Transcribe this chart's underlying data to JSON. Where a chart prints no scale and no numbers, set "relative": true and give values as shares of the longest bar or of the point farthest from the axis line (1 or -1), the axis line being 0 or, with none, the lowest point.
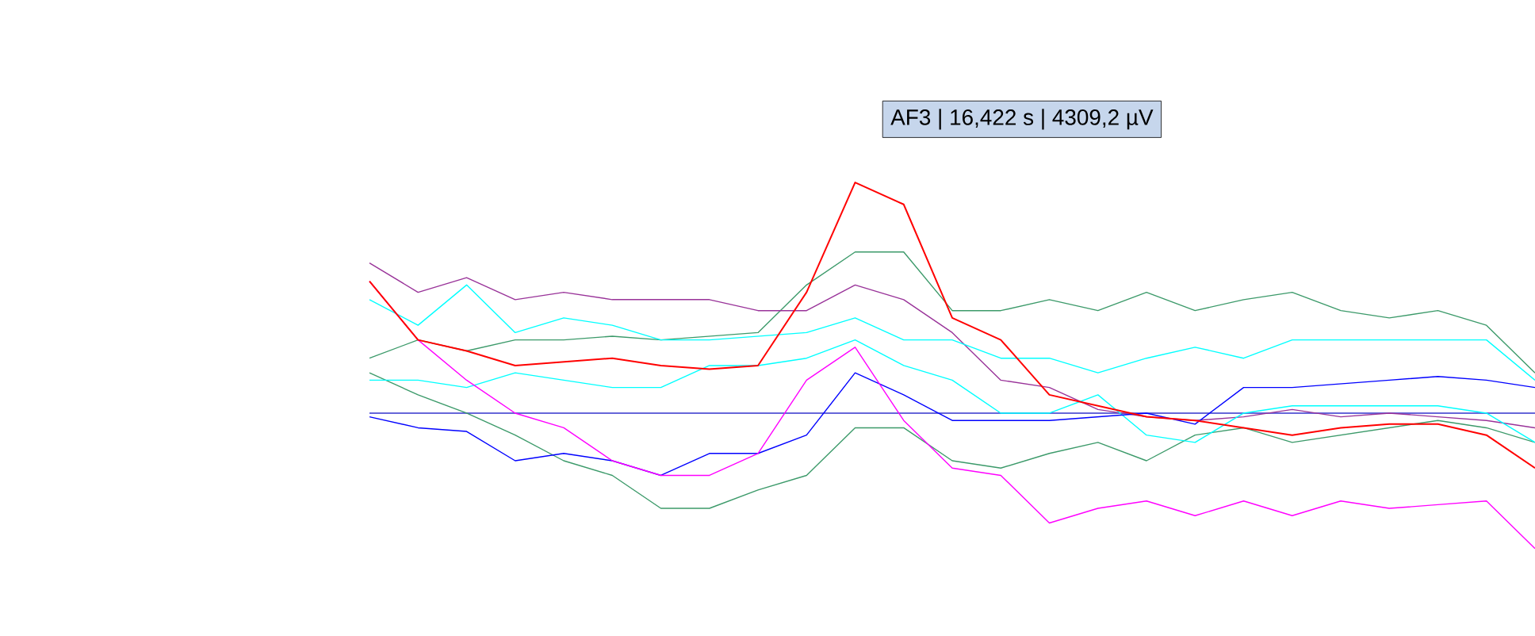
{
  "chart_data": {
    "type": "line",
    "relative": true,
    "marker": "none",
    "line_style": "solid",
    "categories": [
      null,
      null,
      null,
      null,
      null,
      null,
      null,
      null,
      null,
      null,
      null,
      null,
      null,
      null,
      null,
      null,
      null,
      null,
      null,
      null,
      null,
      null,
      null,
      null,
      null
    ],
    "annotations": [
      "AF3 | 16,422 s | 4309,2 µV"
    ],
    "series": [
      {
        "color": "#3333cc",
        "values": [
          0.37,
          0.37,
          0.37,
          0.37,
          0.37,
          0.37,
          0.37,
          0.37,
          0.37,
          0.37,
          0.37,
          0.37,
          0.37,
          0.37,
          0.37,
          0.37,
          0.37,
          0.37,
          0.37,
          0.37,
          0.37,
          0.37,
          0.37,
          0.37,
          0.37
        ]
      },
      {
        "color": "#3c9a6a",
        "values": [
          0.52,
          0.57,
          0.54,
          0.57,
          0.57,
          0.58,
          0.57,
          0.58,
          0.59,
          0.72,
          0.81,
          0.81,
          0.65,
          0.65,
          0.68,
          0.65,
          0.7,
          0.65,
          0.68,
          0.7,
          0.65,
          0.63,
          0.65,
          0.61,
          0.48
        ]
      },
      {
        "color": "#3c9a6a",
        "values": [
          0.48,
          0.42,
          0.37,
          0.31,
          0.24,
          0.2,
          0.11,
          0.11,
          0.16,
          0.2,
          0.33,
          0.33,
          0.24,
          0.22,
          0.26,
          0.29,
          0.24,
          0.31,
          0.33,
          0.29,
          0.31,
          0.33,
          0.35,
          0.33,
          0.29
        ]
      },
      {
        "color": "#993399",
        "values": [
          0.78,
          0.7,
          0.74,
          0.68,
          0.7,
          0.68,
          0.68,
          0.68,
          0.65,
          0.65,
          0.72,
          0.68,
          0.59,
          0.46,
          0.44,
          0.38,
          0.36,
          0.35,
          0.36,
          0.38,
          0.36,
          0.37,
          0.36,
          0.35,
          0.33
        ]
      },
      {
        "color": "#00ffff",
        "values": [
          0.68,
          0.61,
          0.72,
          0.59,
          0.63,
          0.61,
          0.57,
          0.57,
          0.58,
          0.59,
          0.63,
          0.57,
          0.57,
          0.52,
          0.52,
          0.48,
          0.52,
          0.55,
          0.52,
          0.57,
          0.57,
          0.57,
          0.57,
          0.57,
          0.46
        ]
      },
      {
        "color": "#00ffff",
        "values": [
          0.46,
          0.46,
          0.44,
          0.48,
          0.46,
          0.44,
          0.44,
          0.5,
          0.5,
          0.52,
          0.57,
          0.5,
          0.46,
          0.37,
          0.37,
          0.42,
          0.31,
          0.29,
          0.37,
          0.39,
          0.39,
          0.39,
          0.39,
          0.37,
          0.29
        ]
      },
      {
        "color": "#0000ff",
        "values": [
          0.36,
          0.33,
          0.32,
          0.24,
          0.26,
          0.24,
          0.2,
          0.26,
          0.26,
          0.31,
          0.48,
          0.42,
          0.35,
          0.35,
          0.35,
          0.36,
          0.37,
          0.34,
          0.44,
          0.44,
          0.45,
          0.46,
          0.47,
          0.46,
          0.44
        ]
      },
      {
        "color": "#ff00ff",
        "values": [
          0.73,
          0.57,
          0.46,
          0.37,
          0.33,
          0.24,
          0.2,
          0.2,
          0.26,
          0.46,
          0.55,
          0.35,
          0.22,
          0.2,
          0.07,
          0.11,
          0.13,
          0.09,
          0.13,
          0.09,
          0.13,
          0.11,
          0.12,
          0.13,
          0.0
        ]
      },
      {
        "color": "#ff0000",
        "values": [
          0.73,
          0.57,
          0.54,
          0.5,
          0.51,
          0.52,
          0.5,
          0.49,
          0.5,
          0.7,
          1.0,
          0.94,
          0.63,
          0.57,
          0.42,
          0.39,
          0.36,
          0.35,
          0.33,
          0.31,
          0.33,
          0.34,
          0.34,
          0.31,
          0.22
        ]
      }
    ]
  }
}
